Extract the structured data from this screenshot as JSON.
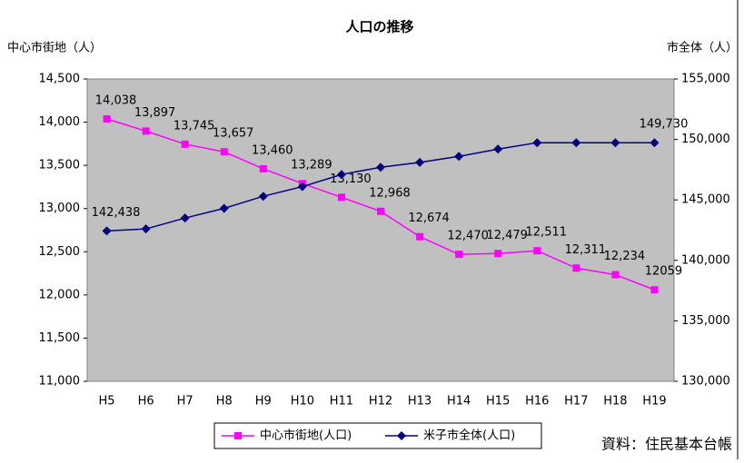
{
  "chart_data": {
    "type": "line",
    "title": "人口の推移",
    "ylabel": "中心市街地（人）",
    "y2label": "市全体（人）",
    "source": "資料：住民基本台帳",
    "categories": [
      "H5",
      "H6",
      "H7",
      "H8",
      "H9",
      "H10",
      "H11",
      "H12",
      "H13",
      "H14",
      "H15",
      "H16",
      "H17",
      "H18",
      "H19"
    ],
    "series": [
      {
        "name": "中心市街地(人口)",
        "color": "#ff00ff",
        "marker": "square",
        "values": [
          14038,
          13897,
          13745,
          13657,
          13460,
          13289,
          13130,
          12968,
          12674,
          12470,
          12479,
          12511,
          12311,
          12234,
          12059
        ],
        "value_labels": [
          "14,038",
          "13,897",
          "13,745",
          "13,657",
          "13,460",
          "13,289",
          "13,130",
          "12,968",
          "12,674",
          "12,470",
          "12,479",
          "12,511",
          "12,311",
          "12,234",
          "12059"
        ]
      },
      {
        "name": "米子市全体(人口)",
        "color": "#000080",
        "marker": "diamond",
        "axis": "y2",
        "values": [
          142438,
          142600,
          143500,
          144300,
          145300,
          146100,
          147100,
          147700,
          148100,
          148600,
          149200,
          149730,
          149730,
          149730,
          149730
        ],
        "value_labels": [
          "142,438",
          null,
          null,
          null,
          null,
          null,
          null,
          null,
          null,
          null,
          null,
          null,
          null,
          null,
          "149,730"
        ]
      }
    ],
    "ylim": [
      11000,
      14500
    ],
    "yticks": [
      {
        "value": 11000,
        "label": "11,000"
      },
      {
        "value": 11500,
        "label": "11,500"
      },
      {
        "value": 12000,
        "label": "12,000"
      },
      {
        "value": 12500,
        "label": "12,500"
      },
      {
        "value": 13000,
        "label": "13,000"
      },
      {
        "value": 13500,
        "label": "13,500"
      },
      {
        "value": 14000,
        "label": "14,000"
      },
      {
        "value": 14500,
        "label": "14,500"
      }
    ],
    "y2lim": [
      130000,
      155000
    ],
    "y2ticks": [
      {
        "value": 130000,
        "label": "130,000"
      },
      {
        "value": 135000,
        "label": "135,000"
      },
      {
        "value": 140000,
        "label": "140,000"
      },
      {
        "value": 145000,
        "label": "145,000"
      },
      {
        "value": 150000,
        "label": "150,000"
      },
      {
        "value": 155000,
        "label": "155,000"
      }
    ],
    "plot_background": "#c0c0c0",
    "legend": "bottom"
  }
}
